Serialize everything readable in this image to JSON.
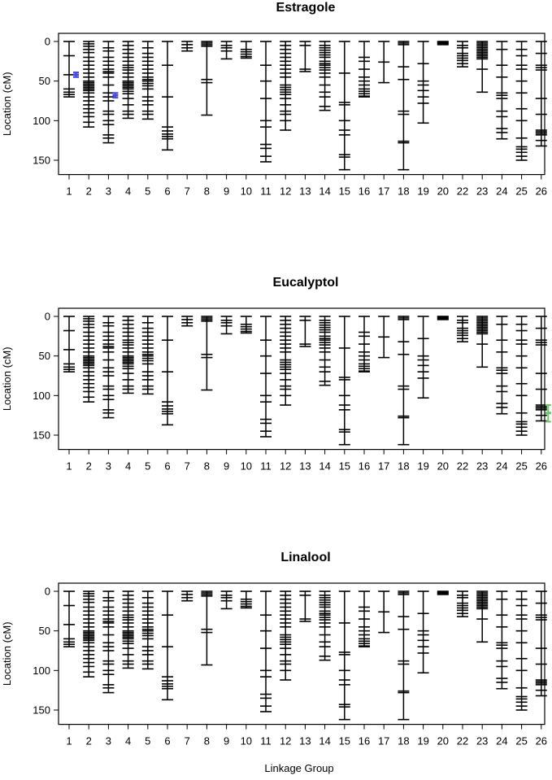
{
  "figure": {
    "xlabel": "Linkage Group"
  },
  "chart_data": [
    {
      "type": "linkage-map",
      "title": "Estragole",
      "ylabel": "Location (cM)",
      "ylim": [
        0,
        165
      ],
      "y_reversed": true,
      "y_ticks": [
        0,
        50,
        100,
        150
      ],
      "grid": false,
      "categories": [
        "1",
        "2",
        "3",
        "4",
        "5",
        "6",
        "7",
        "8",
        "9",
        "10",
        "11",
        "12",
        "13",
        "14",
        "15",
        "16",
        "17",
        "18",
        "19",
        "20",
        "22",
        "23",
        "24",
        "25",
        "26"
      ],
      "qtl_intervals": [
        {
          "group": "1",
          "peak": 42,
          "lower": 39,
          "upper": 45,
          "color": "#4a4ad9"
        },
        {
          "group": "3",
          "peak": 68,
          "lower": 65,
          "upper": 71,
          "color": "#4a4ad9"
        }
      ]
    },
    {
      "type": "linkage-map",
      "title": "Eucalyptol",
      "ylabel": "Location (cM)",
      "ylim": [
        0,
        165
      ],
      "y_reversed": true,
      "y_ticks": [
        0,
        50,
        100,
        150
      ],
      "grid": false,
      "categories": [
        "1",
        "2",
        "3",
        "4",
        "5",
        "6",
        "7",
        "8",
        "9",
        "10",
        "11",
        "12",
        "13",
        "14",
        "15",
        "16",
        "17",
        "18",
        "19",
        "20",
        "22",
        "23",
        "24",
        "25",
        "26"
      ],
      "qtl_intervals": [
        {
          "group": "26",
          "peak": 122,
          "lower": 112,
          "upper": 133,
          "color": "#6cc46c"
        }
      ]
    },
    {
      "type": "linkage-map",
      "title": "Linalool",
      "ylabel": "Location (cM)",
      "ylim": [
        0,
        165
      ],
      "y_reversed": true,
      "y_ticks": [
        0,
        50,
        100,
        150
      ],
      "grid": false,
      "categories": [
        "1",
        "2",
        "3",
        "4",
        "5",
        "6",
        "7",
        "8",
        "9",
        "10",
        "11",
        "12",
        "13",
        "14",
        "15",
        "16",
        "17",
        "18",
        "19",
        "20",
        "22",
        "23",
        "24",
        "25",
        "26"
      ],
      "qtl_intervals": []
    }
  ],
  "linkage_groups": [
    {
      "name": "1",
      "length": 70,
      "markers": [
        0,
        18,
        42,
        60,
        64,
        67,
        70
      ]
    },
    {
      "name": "2",
      "length": 108,
      "markers": [
        0,
        3,
        6,
        10,
        14,
        20,
        25,
        30,
        35,
        40,
        45,
        50,
        52,
        54,
        56,
        58,
        60,
        62,
        65,
        70,
        75,
        80,
        85,
        90,
        95,
        102,
        108
      ]
    },
    {
      "name": "3",
      "length": 128,
      "markers": [
        0,
        8,
        12,
        20,
        25,
        30,
        35,
        38,
        40,
        45,
        55,
        65,
        70,
        75,
        88,
        92,
        100,
        105,
        118,
        122,
        128
      ]
    },
    {
      "name": "4",
      "length": 97,
      "markers": [
        0,
        5,
        10,
        15,
        20,
        25,
        30,
        33,
        36,
        40,
        45,
        50,
        52,
        54,
        56,
        58,
        60,
        63,
        66,
        72,
        80,
        88,
        92,
        97
      ]
    },
    {
      "name": "5",
      "length": 98,
      "markers": [
        0,
        8,
        15,
        20,
        25,
        30,
        35,
        40,
        45,
        48,
        50,
        53,
        56,
        60,
        70,
        75,
        80,
        88,
        92,
        98
      ]
    },
    {
      "name": "6",
      "length": 137,
      "markers": [
        0,
        30,
        70,
        108,
        113,
        117,
        120,
        123,
        137
      ]
    },
    {
      "name": "7",
      "length": 12,
      "markers": [
        0,
        4,
        8,
        12
      ]
    },
    {
      "name": "8",
      "length": 93,
      "markers": [
        0,
        2,
        4,
        6,
        48,
        52,
        93
      ]
    },
    {
      "name": "9",
      "length": 22,
      "markers": [
        0,
        5,
        8,
        12,
        22
      ]
    },
    {
      "name": "10",
      "length": 21,
      "markers": [
        0,
        10,
        13,
        16,
        19,
        21
      ]
    },
    {
      "name": "11",
      "length": 152,
      "markers": [
        0,
        30,
        50,
        72,
        100,
        108,
        130,
        135,
        145,
        152
      ]
    },
    {
      "name": "12",
      "length": 112,
      "markers": [
        0,
        5,
        10,
        15,
        20,
        25,
        30,
        35,
        40,
        45,
        55,
        58,
        61,
        64,
        67,
        72,
        80,
        88,
        92,
        100,
        112
      ]
    },
    {
      "name": "13",
      "length": 38,
      "markers": [
        0,
        5,
        35,
        38
      ]
    },
    {
      "name": "14",
      "length": 87,
      "markers": [
        0,
        5,
        8,
        11,
        14,
        17,
        20,
        25,
        28,
        30,
        33,
        36,
        40,
        45,
        55,
        64,
        70,
        82,
        87
      ]
    },
    {
      "name": "15",
      "length": 162,
      "markers": [
        0,
        40,
        77,
        80,
        100,
        112,
        118,
        143,
        146,
        162
      ]
    },
    {
      "name": "16",
      "length": 70,
      "markers": [
        0,
        20,
        25,
        35,
        45,
        50,
        55,
        60,
        63,
        66,
        69,
        70
      ]
    },
    {
      "name": "17",
      "length": 52,
      "markers": [
        0,
        26,
        52
      ]
    },
    {
      "name": "18",
      "length": 162,
      "markers": [
        0,
        2,
        4,
        32,
        48,
        88,
        92,
        126,
        128,
        162
      ]
    },
    {
      "name": "19",
      "length": 103,
      "markers": [
        0,
        28,
        50,
        55,
        62,
        70,
        78,
        103
      ]
    },
    {
      "name": "20",
      "length": 4,
      "markers": [
        0,
        1,
        2,
        3,
        4
      ]
    },
    {
      "name": "22",
      "length": 32,
      "markers": [
        0,
        5,
        8,
        15,
        18,
        21,
        24,
        28,
        32
      ]
    },
    {
      "name": "23",
      "length": 64,
      "markers": [
        0,
        2,
        4,
        6,
        8,
        10,
        12,
        14,
        16,
        18,
        20,
        22,
        35,
        64
      ]
    },
    {
      "name": "24",
      "length": 123,
      "markers": [
        0,
        10,
        30,
        45,
        65,
        68,
        72,
        88,
        95,
        110,
        115,
        123
      ]
    },
    {
      "name": "25",
      "length": 150,
      "markers": [
        0,
        10,
        18,
        30,
        35,
        50,
        65,
        85,
        100,
        122,
        133,
        136,
        140,
        145,
        150
      ]
    },
    {
      "name": "26",
      "length": 132,
      "markers": [
        0,
        15,
        30,
        33,
        36,
        72,
        92,
        112,
        114,
        116,
        118,
        125,
        132
      ]
    }
  ]
}
